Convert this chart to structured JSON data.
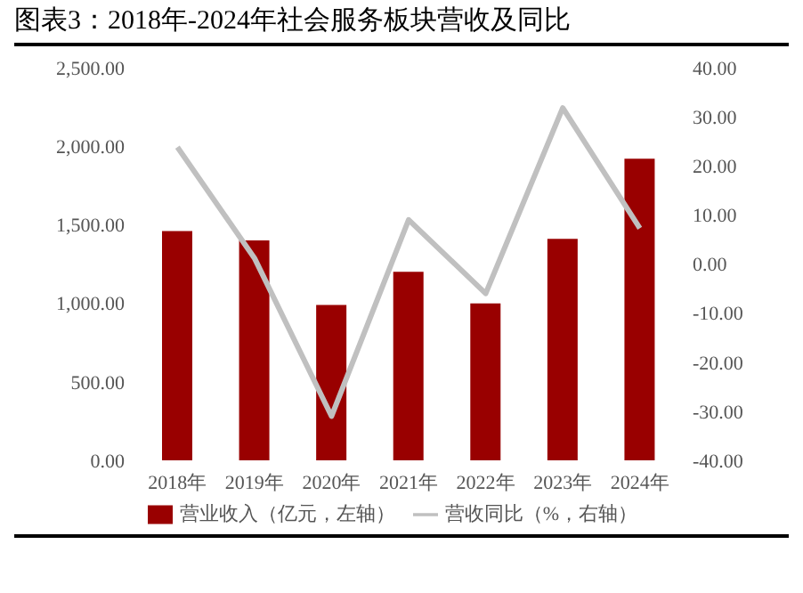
{
  "chart_data": {
    "type": "bar",
    "title": "图表3：2018年-2024年社会服务板块营收及同比",
    "categories": [
      "2018年",
      "2019年",
      "2020年",
      "2021年",
      "2022年",
      "2023年",
      "2024年"
    ],
    "series": [
      {
        "name": "营业收入（亿元，左轴）",
        "color": "#990000",
        "values": [
          1460,
          1400,
          990,
          1200,
          1000,
          1410,
          1920
        ]
      },
      {
        "name": "营收同比（%，右轴）",
        "type": "line",
        "axis": "y2",
        "color": "#c0c0c0",
        "values": [
          23.8,
          1.2,
          -31,
          9,
          -6,
          31.8,
          7.3
        ]
      }
    ],
    "ylim": [
      0,
      2500
    ],
    "yticks": [
      {
        "value": 0,
        "label": "0.00"
      },
      {
        "value": 500,
        "label": "500.00"
      },
      {
        "value": 1000,
        "label": "1,000.00"
      },
      {
        "value": 1500,
        "label": "1,500.00"
      },
      {
        "value": 2000,
        "label": "2,000.00"
      },
      {
        "value": 2500,
        "label": "2,500.00"
      }
    ],
    "y2lim": [
      -40,
      40
    ],
    "y2ticks": [
      {
        "value": -40,
        "label": "-40.00"
      },
      {
        "value": -30,
        "label": "-30.00"
      },
      {
        "value": -20,
        "label": "-20.00"
      },
      {
        "value": -10,
        "label": "-10.00"
      },
      {
        "value": 0,
        "label": "0.00"
      },
      {
        "value": 10,
        "label": "10.00"
      },
      {
        "value": 20,
        "label": "20.00"
      },
      {
        "value": 30,
        "label": "30.00"
      },
      {
        "value": 40,
        "label": "40.00"
      }
    ],
    "grid": false,
    "legend": "bottom",
    "marker": "none"
  }
}
